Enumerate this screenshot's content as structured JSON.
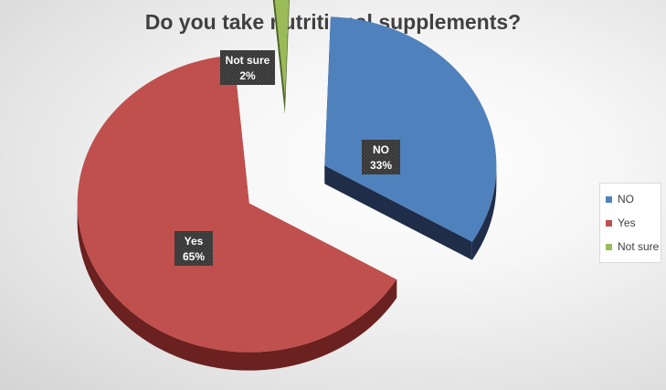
{
  "chart_data": {
    "type": "pie",
    "title": "Do you take nutritional supplements?",
    "style": "3d-exploded",
    "slices": [
      {
        "label": "NO",
        "value": 33,
        "display": "33%",
        "color": "#4f81bd",
        "side_color": "#1f2d49"
      },
      {
        "label": "Yes",
        "value": 65,
        "display": "65%",
        "color": "#c0504d",
        "side_color": "#6a2120"
      },
      {
        "label": "Not sure",
        "value": 2,
        "display": "2%",
        "color": "#9bbb59",
        "side_color": "#4e6526"
      }
    ],
    "legend": {
      "position": "right",
      "entries": [
        "NO",
        "Yes",
        "Not sure"
      ]
    }
  }
}
